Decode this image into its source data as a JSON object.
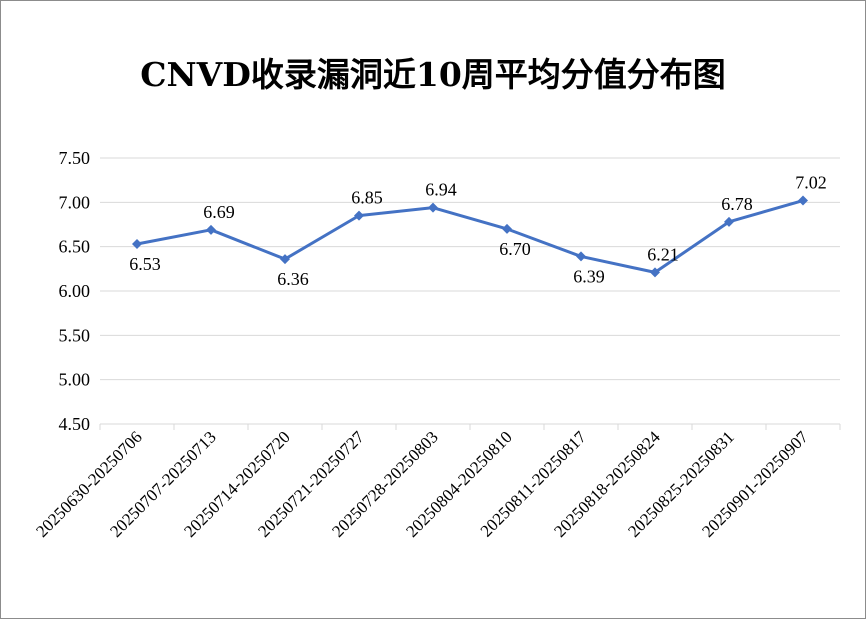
{
  "chart_data": {
    "type": "line",
    "title": "CNVD收录漏洞近10周平均分值分布图",
    "categories": [
      "20250630-20250706",
      "20250707-20250713",
      "20250714-20250720",
      "20250721-20250727",
      "20250728-20250803",
      "20250804-20250810",
      "20250811-20250817",
      "20250818-20250824",
      "20250825-20250831",
      "20250901-20250907"
    ],
    "values": [
      6.53,
      6.69,
      6.36,
      6.85,
      6.94,
      6.7,
      6.39,
      6.21,
      6.78,
      7.02
    ],
    "value_labels": [
      "6.53",
      "6.69",
      "6.36",
      "6.85",
      "6.94",
      "6.70",
      "6.39",
      "6.21",
      "6.78",
      "7.02"
    ],
    "y_ticks": [
      "4.50",
      "5.00",
      "5.50",
      "6.00",
      "6.50",
      "7.00",
      "7.50"
    ],
    "ylim": [
      4.5,
      7.5
    ],
    "grid": true,
    "legend": "none",
    "line_color": "#4472c4"
  }
}
